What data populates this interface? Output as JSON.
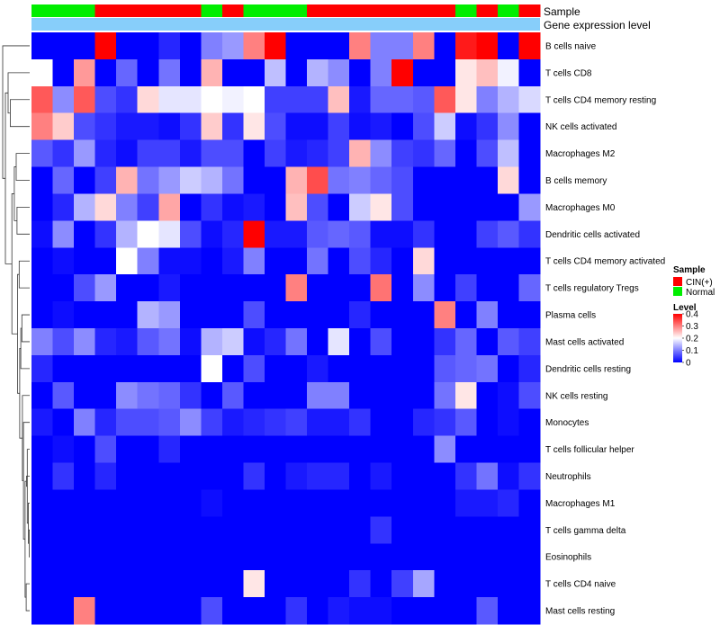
{
  "chart_data": {
    "type": "heatmap",
    "title": "",
    "annotation_tracks": [
      {
        "name": "Sample",
        "label": "Sample"
      },
      {
        "name": "Gene expression level",
        "label": "Gene expression level"
      }
    ],
    "sample_groups": [
      "N",
      "N",
      "N",
      "C",
      "C",
      "C",
      "C",
      "C",
      "N",
      "C",
      "N",
      "N",
      "N",
      "C",
      "C",
      "C",
      "C",
      "C",
      "C",
      "C",
      "N",
      "C",
      "N",
      "C"
    ],
    "group_legend": {
      "title": "Sample",
      "entries": [
        {
          "key": "C",
          "label": "CIN(+)",
          "color": "#ff0000"
        },
        {
          "key": "N",
          "label": "Normal",
          "color": "#00ee00"
        }
      ]
    },
    "expression_track_color": "#87cefa",
    "color_legend": {
      "title": "Level",
      "min": 0,
      "max": 0.4,
      "ticks": [
        0.4,
        0.3,
        0.2,
        0.1,
        0
      ],
      "tick_labels": [
        "0.4",
        "0.3",
        "0.2",
        "0.1",
        "0"
      ],
      "colors": [
        "#0000ff",
        "#ffffff",
        "#ff0000"
      ]
    },
    "rows": [
      "B cells naive",
      "T cells CD8",
      "T cells CD4 memory resting",
      "NK cells activated",
      "Macrophages M2",
      "B cells memory",
      "Macrophages M0",
      "Dendritic cells activated",
      "T cells CD4 memory activated",
      "T cells regulatory  Tregs",
      "Plasma cells",
      "Mast cells activated",
      "Dendritic cells resting",
      "NK cells resting",
      "Monocytes",
      "T cells follicular helper",
      "Neutrophils",
      "Macrophages M1",
      "T cells gamma delta",
      "Eosinophils",
      "T cells CD4 naive",
      "Mast cells resting"
    ],
    "values": [
      [
        0,
        0,
        0,
        0.4,
        0,
        0,
        0.03,
        0,
        0.1,
        0.12,
        0.3,
        0.4,
        0,
        0,
        0,
        0.3,
        0.1,
        0.1,
        0.3,
        0,
        0.38,
        0.4,
        0,
        0.4
      ],
      [
        0.2,
        0,
        0.28,
        0,
        0.08,
        0,
        0.09,
        0,
        0.26,
        0,
        0,
        0.15,
        0,
        0.14,
        0.11,
        0,
        0.1,
        0.4,
        0,
        0,
        0.22,
        0.25,
        0.19,
        0
      ],
      [
        0.33,
        0.11,
        0.33,
        0.06,
        0.04,
        0.23,
        0.18,
        0.18,
        0.2,
        0.19,
        0.2,
        0.05,
        0.05,
        0.05,
        0.25,
        0.02,
        0.08,
        0.08,
        0.07,
        0.33,
        0.22,
        0.1,
        0.14,
        0.17
      ],
      [
        0.3,
        0.24,
        0.06,
        0.04,
        0.02,
        0.02,
        0.01,
        0.04,
        0.24,
        0.04,
        0.22,
        0.06,
        0.01,
        0.01,
        0.05,
        0.01,
        0.02,
        0.0,
        0.06,
        0.16,
        0.01,
        0.04,
        0.11,
        0
      ],
      [
        0.07,
        0.04,
        0.12,
        0.03,
        0.01,
        0.05,
        0.05,
        0.02,
        0.06,
        0.06,
        0.0,
        0.05,
        0.02,
        0.03,
        0.05,
        0.26,
        0.11,
        0.05,
        0.04,
        0.08,
        0,
        0.06,
        0.15,
        0
      ],
      [
        0,
        0.08,
        0,
        0.05,
        0.26,
        0.09,
        0.12,
        0.16,
        0.14,
        0.09,
        0,
        0,
        0.26,
        0.34,
        0.09,
        0.1,
        0.08,
        0.06,
        0,
        0,
        0,
        0,
        0.23,
        0
      ],
      [
        0,
        0.03,
        0.14,
        0.23,
        0.1,
        0.05,
        0.27,
        0,
        0.04,
        0.01,
        0.02,
        0,
        0.25,
        0.06,
        0.0,
        0.16,
        0.22,
        0.06,
        0,
        0,
        0,
        0,
        0,
        0.12
      ],
      [
        0.01,
        0.11,
        0.0,
        0.04,
        0.14,
        0.2,
        0.18,
        0.06,
        0.01,
        0.03,
        0.4,
        0.02,
        0.02,
        0.07,
        0.08,
        0.07,
        0.01,
        0.01,
        0.04,
        0,
        0,
        0.05,
        0.07,
        0.04
      ],
      [
        0,
        0.01,
        0,
        0,
        0.2,
        0.1,
        0.01,
        0.01,
        0,
        0.02,
        0.1,
        0,
        0,
        0.09,
        0,
        0.06,
        0.03,
        0,
        0.23,
        0,
        0,
        0,
        0,
        0
      ],
      [
        0,
        0,
        0.06,
        0.12,
        0,
        0,
        0.02,
        0,
        0,
        0,
        0,
        0,
        0.3,
        0,
        0.0,
        0.0,
        0.31,
        0,
        0.11,
        0,
        0.05,
        0,
        0,
        0.08
      ],
      [
        0,
        0.01,
        0,
        0,
        0,
        0.14,
        0.12,
        0,
        0,
        0,
        0.06,
        0,
        0,
        0,
        0,
        0.03,
        0,
        0,
        0,
        0.3,
        0,
        0.1,
        0,
        0
      ],
      [
        0.1,
        0.06,
        0.11,
        0.03,
        0.02,
        0.07,
        0.09,
        0.01,
        0.14,
        0.16,
        0.01,
        0.03,
        0.09,
        0,
        0.18,
        0,
        0.06,
        0,
        0,
        0.04,
        0.08,
        0,
        0.07,
        0.05
      ],
      [
        0.03,
        0,
        0,
        0,
        0,
        0,
        0,
        0,
        0.2,
        0.0,
        0.06,
        0,
        0,
        0.02,
        0.0,
        0,
        0,
        0,
        0,
        0.07,
        0.08,
        0.09,
        0,
        0.03
      ],
      [
        0,
        0.07,
        0,
        0,
        0.11,
        0.09,
        0.08,
        0.04,
        0,
        0.07,
        0,
        0,
        0,
        0.1,
        0.1,
        0,
        0,
        0,
        0,
        0.09,
        0.22,
        0,
        0.01,
        0.06
      ],
      [
        0.02,
        0,
        0.1,
        0.03,
        0.06,
        0.06,
        0.07,
        0.11,
        0.05,
        0.02,
        0.03,
        0.04,
        0.05,
        0.02,
        0.02,
        0.04,
        0,
        0,
        0.03,
        0.04,
        0.07,
        0,
        0.01,
        0
      ],
      [
        0,
        0.01,
        0,
        0.06,
        0,
        0,
        0.03,
        0,
        0,
        0,
        0,
        0,
        0,
        0,
        0,
        0,
        0,
        0,
        0,
        0.11,
        0,
        0,
        0,
        0
      ],
      [
        0,
        0.04,
        0,
        0.03,
        0,
        0,
        0,
        0,
        0,
        0,
        0.04,
        0,
        0.02,
        0.03,
        0.03,
        0,
        0.02,
        0,
        0,
        0,
        0.04,
        0.09,
        0.01,
        0.04
      ],
      [
        0,
        0,
        0,
        0,
        0,
        0,
        0,
        0,
        0.01,
        0,
        0,
        0,
        0,
        0,
        0,
        0,
        0,
        0,
        0,
        0,
        0.02,
        0.02,
        0.03,
        0
      ],
      [
        0,
        0,
        0,
        0,
        0,
        0,
        0,
        0,
        0,
        0,
        0,
        0,
        0,
        0,
        0,
        0,
        0.04,
        0,
        0,
        0,
        0,
        0,
        0,
        0
      ],
      [
        0,
        0,
        0,
        0,
        0,
        0,
        0,
        0,
        0,
        0,
        0,
        0,
        0,
        0,
        0,
        0,
        0,
        0,
        0,
        0,
        0,
        0,
        0,
        0
      ],
      [
        0,
        0,
        0,
        0,
        0,
        0,
        0,
        0,
        0,
        0,
        0.22,
        0,
        0,
        0,
        0,
        0.04,
        0,
        0.05,
        0.13,
        0,
        0,
        0,
        0,
        0
      ],
      [
        0,
        0,
        0.3,
        0,
        0,
        0,
        0,
        0,
        0.06,
        0,
        0,
        0,
        0.04,
        0,
        0.02,
        0.01,
        0.01,
        0,
        0,
        0,
        0,
        0.07,
        0,
        0
      ]
    ],
    "row_dendrogram": {
      "leaves": [
        0,
        1,
        2,
        3,
        4,
        5,
        6,
        7,
        8,
        9,
        10,
        11,
        12,
        13,
        14,
        15,
        16,
        17,
        18,
        19,
        20,
        21
      ],
      "merges": [
        [
          -19,
          -20,
          0.02
        ],
        [
          -18,
          1,
          0.05
        ],
        [
          -16,
          2,
          0.09
        ],
        [
          -17,
          3,
          0.12
        ],
        [
          -21,
          -22,
          0.13
        ],
        [
          4,
          5,
          0.17
        ],
        [
          -15,
          6,
          0.23
        ],
        [
          -14,
          7,
          0.27
        ],
        [
          -11,
          -12,
          0.29
        ],
        [
          -13,
          9,
          0.33
        ],
        [
          8,
          10,
          0.37
        ],
        [
          -9,
          -10,
          0.39
        ],
        [
          11,
          12,
          0.45
        ],
        [
          -7,
          -8,
          0.47
        ],
        [
          -5,
          -6,
          0.5
        ],
        [
          14,
          15,
          0.57
        ],
        [
          13,
          16,
          0.66
        ],
        [
          -3,
          -4,
          0.72
        ],
        [
          -2,
          18,
          0.8
        ],
        [
          17,
          19,
          0.9
        ],
        [
          -1,
          20,
          1.0
        ]
      ]
    }
  }
}
